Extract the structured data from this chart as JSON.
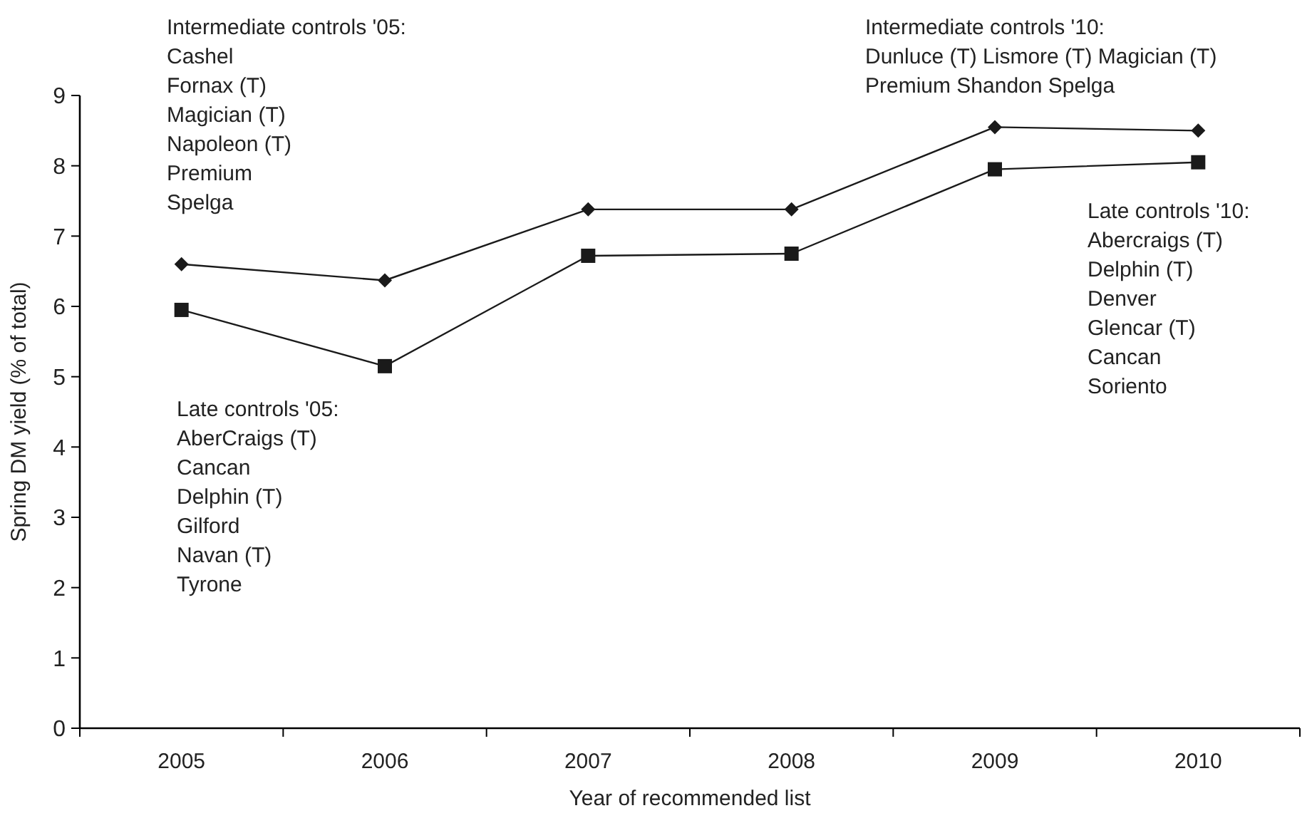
{
  "chart_data": {
    "type": "line",
    "xlabel": "Year of recommended list",
    "ylabel": "Spring DM yield (% of total)",
    "categories": [
      "2005",
      "2006",
      "2007",
      "2008",
      "2009",
      "2010"
    ],
    "ylim": [
      0,
      9
    ],
    "yticks": [
      0,
      1,
      2,
      3,
      4,
      5,
      6,
      7,
      8,
      9
    ],
    "series": [
      {
        "color": "#1a1a1a",
        "marker": "diamond",
        "values": [
          6.6,
          6.37,
          7.38,
          7.38,
          8.55,
          8.5
        ]
      },
      {
        "color": "#1a1a1a",
        "marker": "square",
        "values": [
          5.95,
          5.15,
          6.72,
          6.75,
          7.95,
          8.05
        ]
      }
    ],
    "annotations": [
      "Intermediate controls '05:\nCashel\nFornax (T)\nMagician (T)\nNapoleon (T)\nPremium\nSpelga",
      "Late controls '05:\nAberCraigs (T)\nCancan\nDelphin (T)\nGilford\nNavan (T)\nTyrone",
      "Intermediate controls '10:\nDunluce (T) Lismore (T) Magician (T)\nPremium Shandon Spelga",
      "Late controls '10:\nAbercraigs (T)\nDelphin (T)\nDenver\nGlencar (T)\nCancan\nSoriento"
    ]
  }
}
